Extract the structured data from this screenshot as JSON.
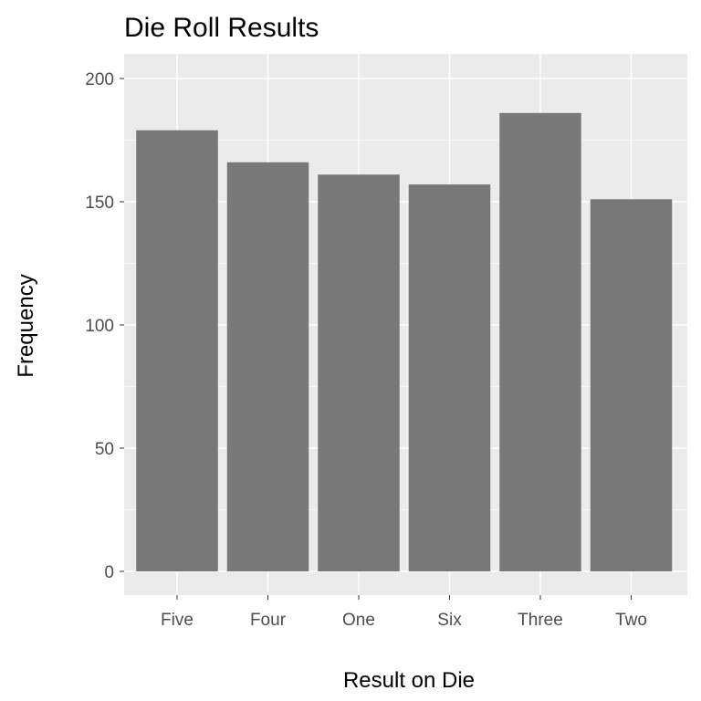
{
  "chart_data": {
    "type": "bar",
    "title": "Die Roll Results",
    "xlabel": "Result on Die",
    "ylabel": "Frequency",
    "categories": [
      "Five",
      "Four",
      "One",
      "Six",
      "Three",
      "Two"
    ],
    "values": [
      179,
      166,
      161,
      157,
      186,
      151
    ],
    "ylim": [
      0,
      210
    ],
    "y_ticks": [
      0,
      50,
      100,
      150,
      200
    ],
    "y_tick_labels": [
      "0",
      "50",
      "100",
      "150",
      "200"
    ],
    "grid": true,
    "legend": "none",
    "colors": {
      "panel_background": "#ebebeb",
      "grid_major": "#ffffff",
      "grid_minor": "#f7f7f7",
      "bar_fill": "#787878",
      "tick_text": "#4d4d4d",
      "tick_mark": "#333333"
    }
  }
}
